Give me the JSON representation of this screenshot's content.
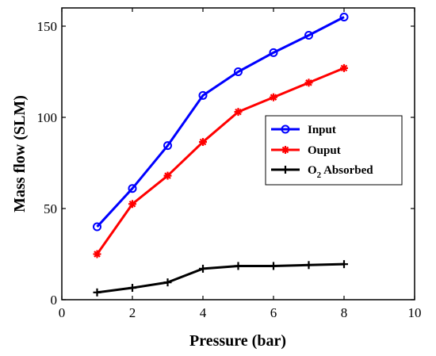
{
  "chart_data": {
    "type": "line",
    "title": "",
    "xlabel": "Pressure (bar)",
    "ylabel": "Mass flow (SLM)",
    "xlim": [
      0,
      10
    ],
    "ylim": [
      0,
      160
    ],
    "xticks": [
      0,
      2,
      4,
      6,
      8,
      10
    ],
    "yticks": [
      0,
      50,
      100,
      150
    ],
    "grid": false,
    "legend_position": "right",
    "series": [
      {
        "name": "Input",
        "color": "#0000ff",
        "marker": "circle",
        "x": [
          1,
          2,
          3,
          4,
          5,
          6,
          7,
          8
        ],
        "y": [
          40,
          61,
          84.5,
          112,
          125,
          135.5,
          145,
          155
        ]
      },
      {
        "name": "Ouput",
        "color": "#ff0000",
        "marker": "asterisk",
        "x": [
          1,
          2,
          3,
          4,
          5,
          6,
          7,
          8
        ],
        "y": [
          25,
          52.5,
          68,
          86.5,
          103,
          111,
          119,
          127
        ]
      },
      {
        "name": "O2 Absorbed",
        "name_main": "O",
        "name_sub": "2",
        "name_rest": " Absorbed",
        "color": "#000000",
        "marker": "plus",
        "x": [
          1,
          2,
          3,
          4,
          5,
          6,
          7,
          8
        ],
        "y": [
          4,
          6.5,
          9.5,
          17,
          18.5,
          18.5,
          19,
          19.5
        ]
      }
    ]
  }
}
